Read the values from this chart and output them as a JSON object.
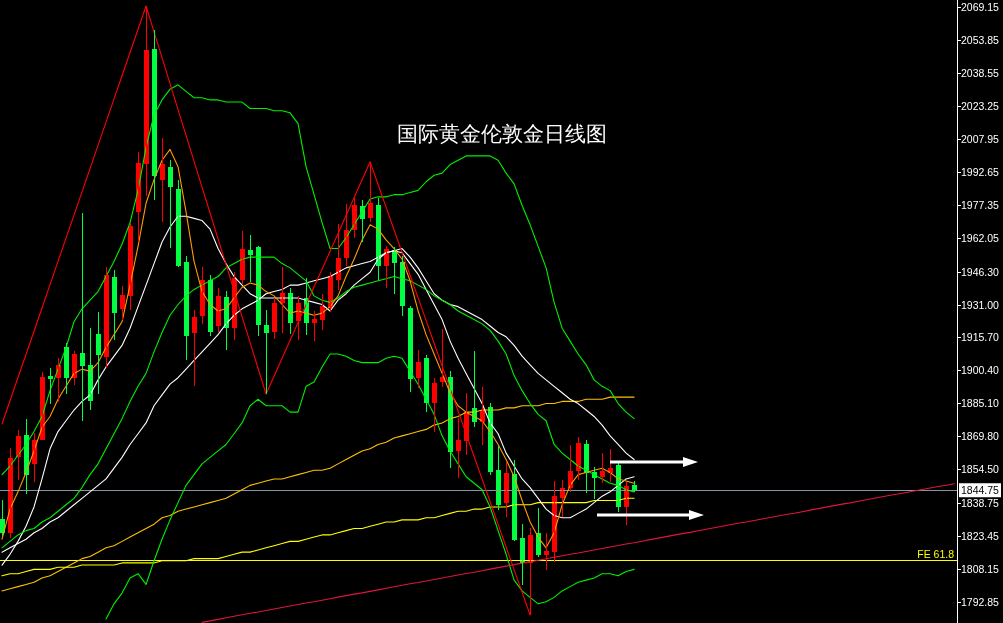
{
  "chart_data": {
    "type": "candlestick",
    "title": "国际黄金伦敦金日线图",
    "tick_labels": "y",
    "categories": [
      null,
      null,
      null,
      null,
      null,
      null,
      null,
      null,
      null,
      null,
      null,
      null,
      null,
      null,
      null,
      null,
      null,
      null,
      null,
      null,
      null,
      null,
      null,
      null,
      null,
      null,
      null,
      null,
      null,
      null,
      null,
      null,
      null,
      null,
      null,
      null,
      null,
      null,
      null,
      null,
      null,
      null,
      null,
      null,
      null,
      null,
      null,
      null,
      null,
      null,
      null,
      null,
      null,
      null,
      null,
      null,
      null,
      null,
      null,
      null,
      null,
      null,
      null,
      null,
      null,
      null,
      null,
      null,
      null,
      null,
      null,
      null,
      null,
      null,
      null,
      null,
      null,
      null,
      null,
      null,
      null,
      null,
      null,
      null,
      null,
      null,
      null,
      null,
      null,
      null,
      null,
      null,
      null,
      null,
      null,
      null,
      null,
      null,
      null,
      null,
      null,
      null,
      null,
      null,
      null,
      null,
      null,
      null,
      null,
      null,
      null,
      null,
      null,
      null,
      null,
      null,
      null,
      null,
      null,
      null
    ],
    "ohlc": [
      [
        1831.5,
        1840.2,
        1823.5,
        1824.8
      ],
      [
        1824.9,
        1864.3,
        1822.6,
        1859.7
      ],
      [
        1860.2,
        1872.7,
        1849.5,
        1869.9
      ],
      [
        1870.4,
        1877.8,
        1843.0,
        1851.8
      ],
      [
        1856.9,
        1871.3,
        1848.6,
        1868.1
      ],
      [
        1868.1,
        1899.6,
        1868.1,
        1897.3
      ],
      [
        1897.8,
        1901.5,
        1884.8,
        1896.4
      ],
      [
        1896.9,
        1906.1,
        1885.7,
        1902.9
      ],
      [
        1911.2,
        1913.1,
        1889.4,
        1896.9
      ],
      [
        1896.9,
        1909.4,
        1893.6,
        1908.0
      ],
      [
        1908.5,
        1973.5,
        1876.9,
        1902.4
      ],
      [
        1902.9,
        1920.1,
        1882.0,
        1886.2
      ],
      [
        1917.3,
        1927.5,
        1889.4,
        1907.5
      ],
      [
        1906.6,
        1948.4,
        1901.5,
        1944.7
      ],
      [
        1943.8,
        1947.0,
        1914.5,
        1927.0
      ],
      [
        1928.9,
        1939.6,
        1923.8,
        1935.4
      ],
      [
        1934.9,
        1968.8,
        1928.4,
        1967.4
      ],
      [
        1974.0,
        2001.8,
        1960.0,
        1996.7
      ],
      [
        1996.2,
        2069.6,
        1981.4,
        2049.2
      ],
      [
        2049.6,
        2058.5,
        1979.5,
        1990.7
      ],
      [
        1988.8,
        2008.3,
        1969.3,
        1996.2
      ],
      [
        1994.8,
        1998.1,
        1957.2,
        1985.6
      ],
      [
        1984.6,
        1988.8,
        1948.4,
        1948.9
      ],
      [
        1950.7,
        1953.5,
        1905.2,
        1916.4
      ],
      [
        1917.8,
        1928.4,
        1893.1,
        1925.2
      ],
      [
        1925.6,
        1948.4,
        1921.9,
        1942.4
      ],
      [
        1942.4,
        1944.7,
        1916.4,
        1918.2
      ],
      [
        1921.0,
        1938.6,
        1918.2,
        1934.9
      ],
      [
        1934.5,
        1937.3,
        1909.9,
        1920.1
      ],
      [
        1920.1,
        1946.1,
        1914.5,
        1943.3
      ],
      [
        1942.4,
        1965.1,
        1940.5,
        1956.8
      ],
      [
        1956.3,
        1963.3,
        1941.4,
        1954.0
      ],
      [
        1957.7,
        1958.2,
        1916.4,
        1921.5
      ],
      [
        1921.5,
        1928.4,
        1889.4,
        1917.8
      ],
      [
        1918.2,
        1934.0,
        1915.0,
        1931.7
      ],
      [
        1931.7,
        1948.4,
        1917.8,
        1936.3
      ],
      [
        1936.3,
        1938.6,
        1917.3,
        1922.4
      ],
      [
        1923.3,
        1934.9,
        1914.5,
        1931.7
      ],
      [
        1934.0,
        1943.3,
        1916.8,
        1922.4
      ],
      [
        1922.4,
        1928.0,
        1914.0,
        1924.3
      ],
      [
        1923.8,
        1935.9,
        1919.1,
        1930.3
      ],
      [
        1929.4,
        1946.1,
        1927.5,
        1944.2
      ],
      [
        1942.4,
        1968.4,
        1937.7,
        1952.6
      ],
      [
        1952.6,
        1977.7,
        1948.9,
        1965.6
      ],
      [
        1965.6,
        1980.5,
        1961.9,
        1977.2
      ],
      [
        1976.7,
        1979.5,
        1960.0,
        1970.7
      ],
      [
        1971.2,
        1997.2,
        1969.3,
        1978.1
      ],
      [
        1977.2,
        1980.5,
        1942.4,
        1948.9
      ],
      [
        1948.9,
        1958.2,
        1938.6,
        1956.8
      ],
      [
        1956.3,
        1957.7,
        1935.9,
        1950.3
      ],
      [
        1950.7,
        1953.5,
        1925.6,
        1930.3
      ],
      [
        1929.4,
        1930.3,
        1890.4,
        1896.4
      ],
      [
        1896.9,
        1909.9,
        1892.2,
        1904.3
      ],
      [
        1906.1,
        1907.5,
        1881.1,
        1885.2
      ],
      [
        1885.4,
        1897.0,
        1871.9,
        1894.4
      ],
      [
        1895.1,
        1919.5,
        1892.8,
        1897.2
      ],
      [
        1897.2,
        1900.2,
        1854.9,
        1862.6
      ],
      [
        1863.1,
        1878.1,
        1850.3,
        1868.1
      ],
      [
        1867.7,
        1889.7,
        1861.1,
        1881.2
      ],
      [
        1882.8,
        1909.4,
        1874.2,
        1876.6
      ],
      [
        1876.6,
        1892.8,
        1865.7,
        1882.0
      ],
      [
        1883.5,
        1885.4,
        1851.8,
        1853.3
      ],
      [
        1854.1,
        1865.3,
        1835.6,
        1837.9
      ],
      [
        1838.7,
        1858.0,
        1832.2,
        1852.6
      ],
      [
        1852.3,
        1858.8,
        1821.3,
        1821.6
      ],
      [
        1822.4,
        1829.1,
        1800.7,
        1810.8
      ],
      [
        1810.8,
        1827.1,
        1786.8,
        1823.9
      ],
      [
        1824.7,
        1836.3,
        1813.9,
        1814.7
      ],
      [
        1814.7,
        1824.7,
        1807.7,
        1816.7
      ],
      [
        1815.9,
        1849.2,
        1811.5,
        1842.1
      ],
      [
        1841.3,
        1849.5,
        1832.4,
        1845.9
      ],
      [
        1845.9,
        1865.7,
        1844.1,
        1853.8
      ],
      [
        1853.8,
        1869.3,
        1849.5,
        1866.8
      ],
      [
        1866.2,
        1868.1,
        1843.3,
        1852.9
      ],
      [
        1853.3,
        1855.7,
        1840.5,
        1850.3
      ],
      [
        1850.7,
        1862.2,
        1848.0,
        1853.8
      ],
      [
        1852.6,
        1863.7,
        1848.7,
        1855.2
      ],
      [
        1856.5,
        1857.2,
        1834.8,
        1837.1
      ],
      [
        1837.1,
        1848.7,
        1828.6,
        1846.7
      ],
      [
        1847.2,
        1849.2,
        1844.1,
        1844.75
      ],
      null,
      null,
      null,
      null,
      null,
      null,
      null,
      null,
      null,
      null,
      null,
      null,
      null,
      null,
      null,
      null,
      null,
      null,
      null,
      null,
      null,
      null,
      null,
      null,
      null,
      null,
      null,
      null,
      null,
      null,
      null,
      null,
      null,
      null,
      null,
      null,
      null,
      null,
      null,
      null
    ],
    "colors": [
      "#00ff40",
      "#ff0000",
      "#ff0000",
      "#00ff40",
      "#ff0000",
      "#ff0000",
      "#00ff40",
      "#ff0000",
      "#00ff40",
      "#ff0000",
      "#00ff40",
      "#00ff40",
      "#00ff40",
      "#ff0000",
      "#00ff40",
      "#ff0000",
      "#ff0000",
      "#ff0000",
      "#ff0000",
      "#00ff40",
      "#ff0000",
      "#00ff40",
      "#00ff40",
      "#00ff40",
      "#ff0000",
      "#ff0000",
      "#00ff40",
      "#ff0000",
      "#00ff40",
      "#ff0000",
      "#ff0000",
      "#00ff40",
      "#00ff40",
      "#00ff40",
      "#ff0000",
      "#ff0000",
      "#00ff40",
      "#ff0000",
      "#00ff40",
      "#ff0000",
      "#ff0000",
      "#ff0000",
      "#ff0000",
      "#ff0000",
      "#ff0000",
      "#00ff40",
      "#ff0000",
      "#00ff40",
      "#ff0000",
      "#00ff40",
      "#00ff40",
      "#00ff40",
      "#ff0000",
      "#00ff40",
      "#ff0000",
      "#ff0000",
      "#00ff40",
      "#ff0000",
      "#ff0000",
      "#00ff40",
      "#ff0000",
      "#00ff40",
      "#00ff40",
      "#ff0000",
      "#00ff40",
      "#00ff40",
      "#ff0000",
      "#00ff40",
      "#ff0000",
      "#ff0000",
      "#ff0000",
      "#ff0000",
      "#ff0000",
      "#00ff40",
      "#00ff40",
      "#ff0000",
      "#ff0000",
      "#00ff40",
      "#ff0000",
      "#00ff40",
      null,
      null,
      null,
      null,
      null,
      null,
      null,
      null,
      null,
      null,
      null,
      null,
      null,
      null,
      null,
      null,
      null,
      null,
      null,
      null,
      null,
      null,
      null,
      null,
      null,
      null,
      null,
      null,
      null,
      null,
      null,
      null,
      null,
      null,
      null,
      null,
      null,
      null,
      null,
      null
    ],
    "series": [
      {
        "type": "line",
        "color": "#ffc000",
        "values": [
          1798,
          1799,
          1800,
          1801,
          1802,
          1804,
          1805,
          1807,
          1809,
          1811,
          1813,
          1814,
          1816,
          1818,
          1819,
          1821,
          1823,
          1825,
          1827,
          1829,
          1832,
          1833,
          1835,
          1836,
          1837,
          1838,
          1839,
          1840,
          1841,
          1843,
          1845,
          1847,
          1848,
          1849,
          1850,
          1850,
          1851,
          1852,
          1853,
          1854,
          1854,
          1855,
          1857,
          1859,
          1861,
          1863,
          1864,
          1866,
          1867,
          1869,
          1870,
          1871,
          1872,
          1873,
          1875,
          1876,
          1878,
          1879,
          1881,
          1881,
          1882,
          1882,
          1882,
          1883,
          1883,
          1884,
          1884,
          1884,
          1885,
          1885,
          1886,
          1886,
          1886,
          1887,
          1887,
          1887,
          1888,
          1888,
          1888,
          1888,
          null,
          null,
          null,
          null,
          null,
          null,
          null,
          null,
          null,
          null,
          null,
          null,
          null,
          null,
          null,
          null,
          null,
          null,
          null,
          null,
          null,
          null,
          null,
          null,
          null,
          null,
          null,
          null,
          null,
          null,
          null,
          null,
          null,
          null,
          null,
          null,
          null,
          null,
          null,
          null
        ]
      },
      {
        "type": "line",
        "color": "#ffff00",
        "values": [
          1805,
          1806,
          1806,
          1807,
          1808,
          1808,
          1808,
          1809,
          1809,
          1809,
          1810,
          1810,
          1810,
          1810,
          1810,
          1811,
          1811,
          1811,
          1811,
          1811,
          1812,
          1812,
          1812,
          1812,
          1813,
          1813,
          1813,
          1813,
          1814,
          1815,
          1816,
          1816,
          1817,
          1818,
          1819,
          1820,
          1821,
          1821,
          1822,
          1823,
          1824,
          1824,
          1825,
          1826,
          1827,
          1827,
          1828,
          1829,
          1830,
          1830,
          1831,
          1831,
          1831,
          1832,
          1832,
          1833,
          1834,
          1835,
          1835,
          1836,
          1836,
          1837,
          1837,
          1837,
          1838,
          1838,
          1838,
          1839,
          1839,
          1839,
          1839,
          1839,
          1839,
          1839,
          1840,
          1840,
          1840,
          1840,
          1841,
          1841,
          null,
          null,
          null,
          null,
          null,
          null,
          null,
          null,
          null,
          null,
          null,
          null,
          null,
          null,
          null,
          null,
          null,
          null,
          null,
          null,
          null,
          null,
          null,
          null,
          null,
          null,
          null,
          null,
          null,
          null,
          null,
          null,
          null,
          null,
          null,
          null,
          null,
          null,
          null,
          null
        ]
      },
      {
        "type": "line",
        "color": "#ffffff",
        "values": [
          1816,
          1818,
          1820,
          1822,
          1825,
          1827,
          1830,
          1832,
          1835,
          1838,
          1841,
          1844,
          1847,
          1850,
          1855,
          1860,
          1866,
          1871,
          1876,
          1884,
          1889,
          1894,
          1897,
          1901,
          1905,
          1909,
          1913,
          1917,
          1922,
          1926,
          1929,
          1931,
          1933,
          1936,
          1937,
          1938,
          1940,
          1940,
          1941,
          1942,
          1943,
          1944,
          1946,
          1948,
          1949,
          1950,
          1951,
          1953,
          1955,
          1956,
          1957,
          1953,
          1948,
          1942,
          1936,
          1933,
          1931,
          1930,
          1928,
          1926,
          1924,
          1921,
          1918,
          1916,
          1912,
          1907,
          1903,
          1899,
          1896,
          1893,
          1890,
          1887,
          1885,
          1882,
          1879,
          1875,
          1870,
          1866,
          1862,
          1859,
          null,
          null,
          null,
          null,
          null,
          null,
          null,
          null,
          null,
          null,
          null,
          null,
          null,
          null,
          null,
          null,
          null,
          null,
          null,
          null,
          null,
          null,
          null,
          null,
          null,
          null,
          null,
          null,
          null,
          null,
          null,
          null,
          null,
          null,
          null,
          null,
          null,
          null,
          null,
          null
        ]
      },
      {
        "type": "line",
        "color": "#ffffff",
        "values": [
          1810,
          1815,
          1821,
          1828,
          1837,
          1850,
          1864,
          1872,
          1877,
          1882,
          1886,
          1889,
          1896,
          1902,
          1907,
          1912,
          1920,
          1930,
          1940,
          1950,
          1960,
          1967,
          1972,
          1972,
          1971,
          1970,
          1966,
          1957,
          1950,
          1944,
          1940,
          1936,
          1934,
          1934,
          1934,
          1934,
          1934,
          1934,
          1933,
          1932,
          1931,
          1928,
          1933,
          1936,
          1940,
          1943,
          1946,
          1952,
          1955,
          1956,
          1955,
          1950,
          1945,
          1938,
          1931,
          1924,
          1914,
          1906,
          1899,
          1892,
          1885,
          1876,
          1871,
          1862,
          1856,
          1850,
          1846,
          1841,
          1836,
          1833,
          1832,
          1832,
          1834,
          1836,
          1839,
          1842,
          1844,
          1847,
          1850,
          1851,
          null,
          null,
          null,
          null,
          null,
          null,
          null,
          null,
          null,
          null,
          null,
          null,
          null,
          null,
          null,
          null,
          null,
          null,
          null,
          null,
          null,
          null,
          null,
          null,
          null,
          null,
          null,
          null,
          null,
          null,
          null,
          null,
          null,
          null,
          null,
          null,
          null,
          null,
          null,
          null
        ]
      },
      {
        "type": "line",
        "color": "#00f000",
        "values": [
          null,
          null,
          null,
          null,
          null,
          null,
          null,
          null,
          null,
          null,
          null,
          null,
          null,
          1785,
          1792,
          1797,
          1804,
          1806,
          1801,
          1812,
          1822,
          1831,
          1839,
          1847,
          1852,
          1857,
          1860,
          1863,
          1866,
          1871,
          1876,
          1884,
          1887,
          1884,
          1884,
          1884,
          1881,
          1881,
          1893,
          1895,
          1902,
          1908,
          1908,
          1907,
          1905,
          1904,
          1904,
          1904,
          1906,
          1907,
          1906,
          1900,
          1894,
          1887,
          1880,
          1870,
          1863,
          1857,
          1851,
          1848,
          1845,
          1837,
          1826,
          1815,
          1803,
          1798,
          1795,
          1792,
          1793,
          1795,
          1798,
          1800,
          1802,
          1803,
          1804,
          1806,
          1806,
          1805,
          1807,
          1808,
          null,
          null,
          null,
          null,
          null,
          null,
          null,
          null,
          null,
          null,
          null,
          null,
          null,
          null,
          null,
          null,
          null,
          null,
          null,
          null,
          null,
          null,
          null,
          null,
          null,
          null,
          null,
          null,
          null,
          null,
          null,
          null,
          null,
          null,
          null,
          null,
          null,
          null,
          null,
          null
        ]
      },
      {
        "type": "line",
        "color": "#00f000",
        "values": [
          1818,
          1821,
          1824,
          1826,
          1827,
          1830,
          1832,
          1835,
          1838,
          1841,
          1846,
          1852,
          1857,
          1864,
          1871,
          1878,
          1886,
          1893,
          1899,
          1909,
          1918,
          1926,
          1931,
          1935,
          1938,
          1940,
          1942,
          1944,
          1948,
          1950,
          1952,
          1953,
          1953,
          1953,
          1953,
          1950,
          1948,
          1945,
          1942,
          1935,
          1933,
          1932,
          1934,
          1937,
          1939,
          1940,
          1941,
          1942,
          1943,
          1944,
          1943,
          1942,
          1940,
          1938,
          1935,
          1933,
          1931,
          1928,
          1926,
          1924,
          1922,
          1919,
          1914,
          1908,
          1898,
          1891,
          1885,
          1880,
          1877,
          1866,
          1862,
          1859,
          1856,
          1854,
          1852,
          1850,
          1848,
          1847,
          1845,
          1844,
          null,
          null,
          null,
          null,
          null,
          null,
          null,
          null,
          null,
          null,
          null,
          null,
          null,
          null,
          null,
          null,
          null,
          null,
          null,
          null,
          null,
          null,
          null,
          null,
          null,
          null,
          null,
          null,
          null,
          null,
          null,
          null,
          null,
          null,
          null,
          null,
          null,
          null,
          null,
          null
        ]
      },
      {
        "type": "line",
        "color": "#00f000",
        "values": [
          1852,
          1856,
          1861,
          1866,
          1872,
          1879,
          1891,
          1901,
          1911,
          1923,
          1929,
          1933,
          1937,
          1944,
          1951,
          1959,
          1969,
          1984,
          2004,
          2019,
          2026,
          2031,
          2033,
          2030,
          2027,
          2027,
          2026,
          2026,
          2025,
          2025,
          2025,
          2022,
          2022,
          2022,
          2021,
          2021,
          2020,
          2015,
          1995,
          1982,
          1969,
          1957,
          1957,
          1962,
          1968,
          1974,
          1980,
          1981,
          1981,
          1982,
          1982,
          1983,
          1984,
          1988,
          1991,
          1992,
          1996,
          1998,
          2000,
          2000,
          2000,
          2000,
          1998,
          1992,
          1987,
          1977,
          1968,
          1958,
          1948,
          1932,
          1920,
          1914,
          1908,
          1903,
          1896,
          1893,
          1891,
          1885,
          1881,
          1878,
          null,
          null,
          null,
          null,
          null,
          null,
          null,
          null,
          null,
          null,
          null,
          null,
          null,
          null,
          null,
          null,
          null,
          null,
          null,
          null,
          null,
          null,
          null,
          null,
          null,
          null,
          null,
          null,
          null,
          null,
          null,
          null,
          null,
          null,
          null,
          null,
          null,
          null,
          null,
          null
        ]
      },
      {
        "type": "line",
        "color": "#ff9c00",
        "values": [
          1822,
          1836,
          1844,
          1853,
          1863,
          1874,
          1879,
          1887,
          1893,
          1899,
          1901,
          1900,
          1904,
          1911,
          1917,
          1923,
          1940,
          1958,
          1978,
          1989,
          1998,
          2003,
          1995,
          1974,
          1951,
          1937,
          1931,
          1928,
          1929,
          1934,
          1939,
          1941,
          1940,
          1937,
          1935,
          1931,
          1927,
          1928,
          1927,
          1926,
          1927,
          1930,
          1935,
          1944,
          1952,
          1961,
          1968,
          1966,
          1961,
          1957,
          1952,
          1942,
          1928,
          1917,
          1908,
          1899,
          1890,
          1884,
          1881,
          1879,
          1877,
          1872,
          1866,
          1859,
          1851,
          1840,
          1830,
          1823,
          1818,
          1825,
          1838,
          1847,
          1852,
          1853,
          1854,
          1855,
          1853,
          1850,
          1849,
          1848,
          null,
          null,
          null,
          null,
          null,
          null,
          null,
          null,
          null,
          null,
          null,
          null,
          null,
          null,
          null,
          null,
          null,
          null,
          null,
          null,
          null,
          null,
          null,
          null,
          null,
          null,
          null,
          null,
          null,
          null,
          null,
          null,
          null,
          null,
          null,
          null,
          null,
          null,
          null,
          null
        ]
      },
      {
        "type": "line",
        "color": "#ff0000",
        "values": [
          1875.5,
          1886.3,
          1897.1,
          1907.8,
          1918.6,
          1929.4,
          1940.2,
          1951.0,
          1961.8,
          1972.5,
          1983.3,
          1994.1,
          2004.9,
          2015.7,
          2026.5,
          2037.2,
          2048.0,
          2058.8,
          2069.6,
          2057.6,
          2045.6,
          2033.6,
          2021.5,
          2009.5,
          1997.5,
          1985.5,
          1973.5,
          1961.5,
          1949.5,
          1937.5,
          1925.4,
          1913.4,
          1901.4,
          1889.4,
          1897.7,
          1906.0,
          1914.3,
          1922.6,
          1930.9,
          1939.2,
          1947.4,
          1955.7,
          1964.0,
          1972.3,
          1980.6,
          1988.9,
          1997.2,
          1986.7,
          1976.2,
          1965.6,
          1955.1,
          1944.6,
          1934.1,
          1923.6,
          1913.0,
          1902.5,
          1892.0,
          1881.5,
          1871.0,
          1860.4,
          1849.9,
          1839.4,
          1828.9,
          1818.4,
          1807.8,
          1797.3,
          1786.8,
          null,
          null,
          null,
          null,
          null,
          null,
          null,
          null,
          null,
          null,
          null,
          null,
          null,
          null,
          null,
          null,
          null,
          null,
          null,
          null,
          null,
          null,
          null,
          null,
          null,
          null,
          null,
          null,
          null,
          null,
          null,
          null,
          null,
          null,
          null,
          null,
          null,
          null,
          null,
          null,
          null,
          null,
          null,
          null,
          null,
          null,
          null,
          null,
          null,
          null,
          null,
          null,
          null
        ]
      },
      {
        "type": "line",
        "color": "#e0143c",
        "values": [
          null,
          null,
          null,
          null,
          null,
          null,
          null,
          null,
          null,
          null,
          null,
          null,
          null,
          null,
          null,
          null,
          null,
          null,
          null,
          null,
          null,
          null,
          null,
          null,
          null,
          1783.4,
          1784.1,
          1784.8,
          1785.5,
          1786.2,
          1786.9,
          1787.6,
          1788.2,
          1788.9,
          1789.6,
          1790.3,
          1791.0,
          1791.7,
          1792.4,
          1793.0,
          1793.7,
          1794.4,
          1795.1,
          1795.8,
          1796.5,
          1797.1,
          1797.8,
          1798.5,
          1799.2,
          1799.9,
          1800.6,
          1801.3,
          1801.9,
          1802.6,
          1803.3,
          1804.0,
          1804.7,
          1805.4,
          1806.1,
          1806.7,
          1807.4,
          1808.1,
          1808.8,
          1809.5,
          1810.2,
          1810.9,
          1811.5,
          1812.2,
          1812.9,
          1813.6,
          1814.3,
          1815.0,
          1815.6,
          1816.3,
          1817.0,
          1817.7,
          1818.4,
          1819.1,
          1819.8,
          1820.4,
          1821.1,
          1821.8,
          1822.5,
          1823.2,
          1823.9,
          1824.6,
          1825.2,
          1825.9,
          1826.6,
          1827.3,
          1828.0,
          1828.7,
          1829.4,
          1830.0,
          1830.7,
          1831.4,
          1832.1,
          1832.8,
          1833.5,
          1834.1,
          1834.8,
          1835.5,
          1836.2,
          1836.9,
          1837.6,
          1838.3,
          1838.9,
          1839.6,
          1840.3,
          1841.0,
          1841.7,
          1842.4,
          1843.0,
          1843.7,
          1844.4,
          1845.1,
          1845.8,
          1846.5,
          1847.1,
          1847.8
        ]
      }
    ],
    "ylim": [
      1783.1,
      2072.4
    ],
    "yticks": [
      {
        "value": 2069.15,
        "label": "2069.15"
      },
      {
        "value": 2053.85,
        "label": "2053.85"
      },
      {
        "value": 2038.55,
        "label": "2038.55"
      },
      {
        "value": 2023.25,
        "label": "2023.25"
      },
      {
        "value": 2007.95,
        "label": "2007.95"
      },
      {
        "value": 1992.65,
        "label": "1992.65"
      },
      {
        "value": 1977.35,
        "label": "1977.35"
      },
      {
        "value": 1962.05,
        "label": "1962.05"
      },
      {
        "value": 1946.3,
        "label": "1946.30"
      },
      {
        "value": 1931,
        "label": "1931.00"
      },
      {
        "value": 1915.7,
        "label": "1915.70"
      },
      {
        "value": 1900.4,
        "label": "1900.40"
      },
      {
        "value": 1885.1,
        "label": "1885.10"
      },
      {
        "value": 1869.8,
        "label": "1869.80"
      },
      {
        "value": 1854.5,
        "label": "1854.50"
      },
      {
        "value": 1838.75,
        "label": "1838.75"
      },
      {
        "value": 1823.45,
        "label": "1823.45"
      },
      {
        "value": 1808.15,
        "label": "1808.15"
      },
      {
        "value": 1792.85,
        "label": "1792.85"
      }
    ],
    "ref_lines": [
      {
        "axis": "y",
        "value": 1844.75,
        "label": "1844.75",
        "color": "#8896a4"
      },
      {
        "axis": "y",
        "value": 1812,
        "label": "FE 61.8",
        "color": "#ffff00"
      }
    ]
  }
}
